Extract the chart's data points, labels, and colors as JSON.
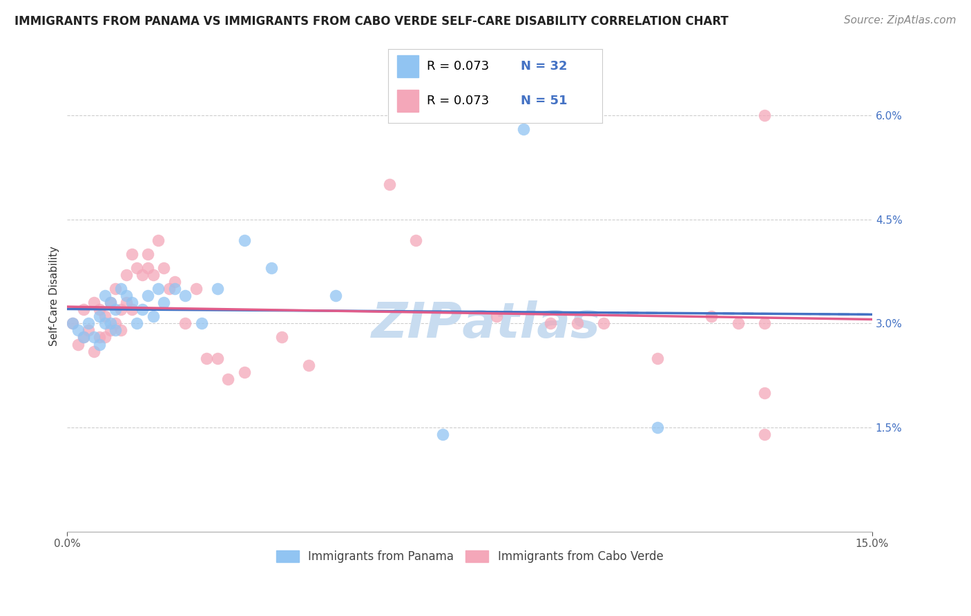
{
  "title": "IMMIGRANTS FROM PANAMA VS IMMIGRANTS FROM CABO VERDE SELF-CARE DISABILITY CORRELATION CHART",
  "source": "Source: ZipAtlas.com",
  "ylabel": "Self-Care Disability",
  "legend_label1": "Immigrants from Panama",
  "legend_label2": "Immigrants from Cabo Verde",
  "color_panama": "#91C4F2",
  "color_caboverde": "#F4A7B9",
  "trendline_panama": "#4472C4",
  "trendline_caboverde": "#E05C8A",
  "background": "#FFFFFF",
  "grid_color": "#C8C8C8",
  "xlim": [
    0,
    0.15
  ],
  "ylim": [
    0,
    0.068
  ],
  "yticks": [
    0.015,
    0.03,
    0.045,
    0.06
  ],
  "ytick_labels": [
    "1.5%",
    "3.0%",
    "4.5%",
    "6.0%"
  ],
  "xtick_labels": [
    "0.0%",
    "15.0%"
  ],
  "panama_x": [
    0.001,
    0.002,
    0.003,
    0.004,
    0.005,
    0.006,
    0.006,
    0.007,
    0.007,
    0.008,
    0.008,
    0.009,
    0.009,
    0.01,
    0.011,
    0.012,
    0.013,
    0.014,
    0.015,
    0.016,
    0.017,
    0.018,
    0.02,
    0.022,
    0.025,
    0.028,
    0.033,
    0.038,
    0.05,
    0.07,
    0.085,
    0.11
  ],
  "panama_y": [
    0.03,
    0.029,
    0.028,
    0.03,
    0.028,
    0.031,
    0.027,
    0.03,
    0.034,
    0.03,
    0.033,
    0.032,
    0.029,
    0.035,
    0.034,
    0.033,
    0.03,
    0.032,
    0.034,
    0.031,
    0.035,
    0.033,
    0.035,
    0.034,
    0.03,
    0.035,
    0.042,
    0.038,
    0.034,
    0.014,
    0.058,
    0.015
  ],
  "caboverde_x": [
    0.001,
    0.002,
    0.003,
    0.003,
    0.004,
    0.005,
    0.005,
    0.006,
    0.006,
    0.007,
    0.007,
    0.008,
    0.008,
    0.009,
    0.009,
    0.01,
    0.01,
    0.011,
    0.011,
    0.012,
    0.012,
    0.013,
    0.014,
    0.015,
    0.015,
    0.016,
    0.017,
    0.018,
    0.019,
    0.02,
    0.022,
    0.024,
    0.026,
    0.028,
    0.03,
    0.033,
    0.04,
    0.045,
    0.06,
    0.065,
    0.08,
    0.09,
    0.095,
    0.1,
    0.11,
    0.12,
    0.125,
    0.13,
    0.13,
    0.13,
    0.13
  ],
  "caboverde_y": [
    0.03,
    0.027,
    0.028,
    0.032,
    0.029,
    0.033,
    0.026,
    0.028,
    0.032,
    0.031,
    0.028,
    0.029,
    0.033,
    0.03,
    0.035,
    0.029,
    0.032,
    0.033,
    0.037,
    0.032,
    0.04,
    0.038,
    0.037,
    0.04,
    0.038,
    0.037,
    0.042,
    0.038,
    0.035,
    0.036,
    0.03,
    0.035,
    0.025,
    0.025,
    0.022,
    0.023,
    0.028,
    0.024,
    0.05,
    0.042,
    0.031,
    0.03,
    0.03,
    0.03,
    0.025,
    0.031,
    0.03,
    0.06,
    0.02,
    0.014,
    0.03
  ],
  "legend_r_color": "#000000",
  "legend_n_color": "#4472C4",
  "title_color": "#222222",
  "source_color": "#888888",
  "tick_color_y": "#4472C4",
  "tick_color_x": "#555555",
  "watermark_text": "ZIPаtlas",
  "watermark_color": "#C8DCF0",
  "title_fontsize": 12,
  "axis_label_fontsize": 11,
  "tick_fontsize": 11,
  "legend_fontsize": 13,
  "source_fontsize": 11,
  "watermark_fontsize": 52
}
